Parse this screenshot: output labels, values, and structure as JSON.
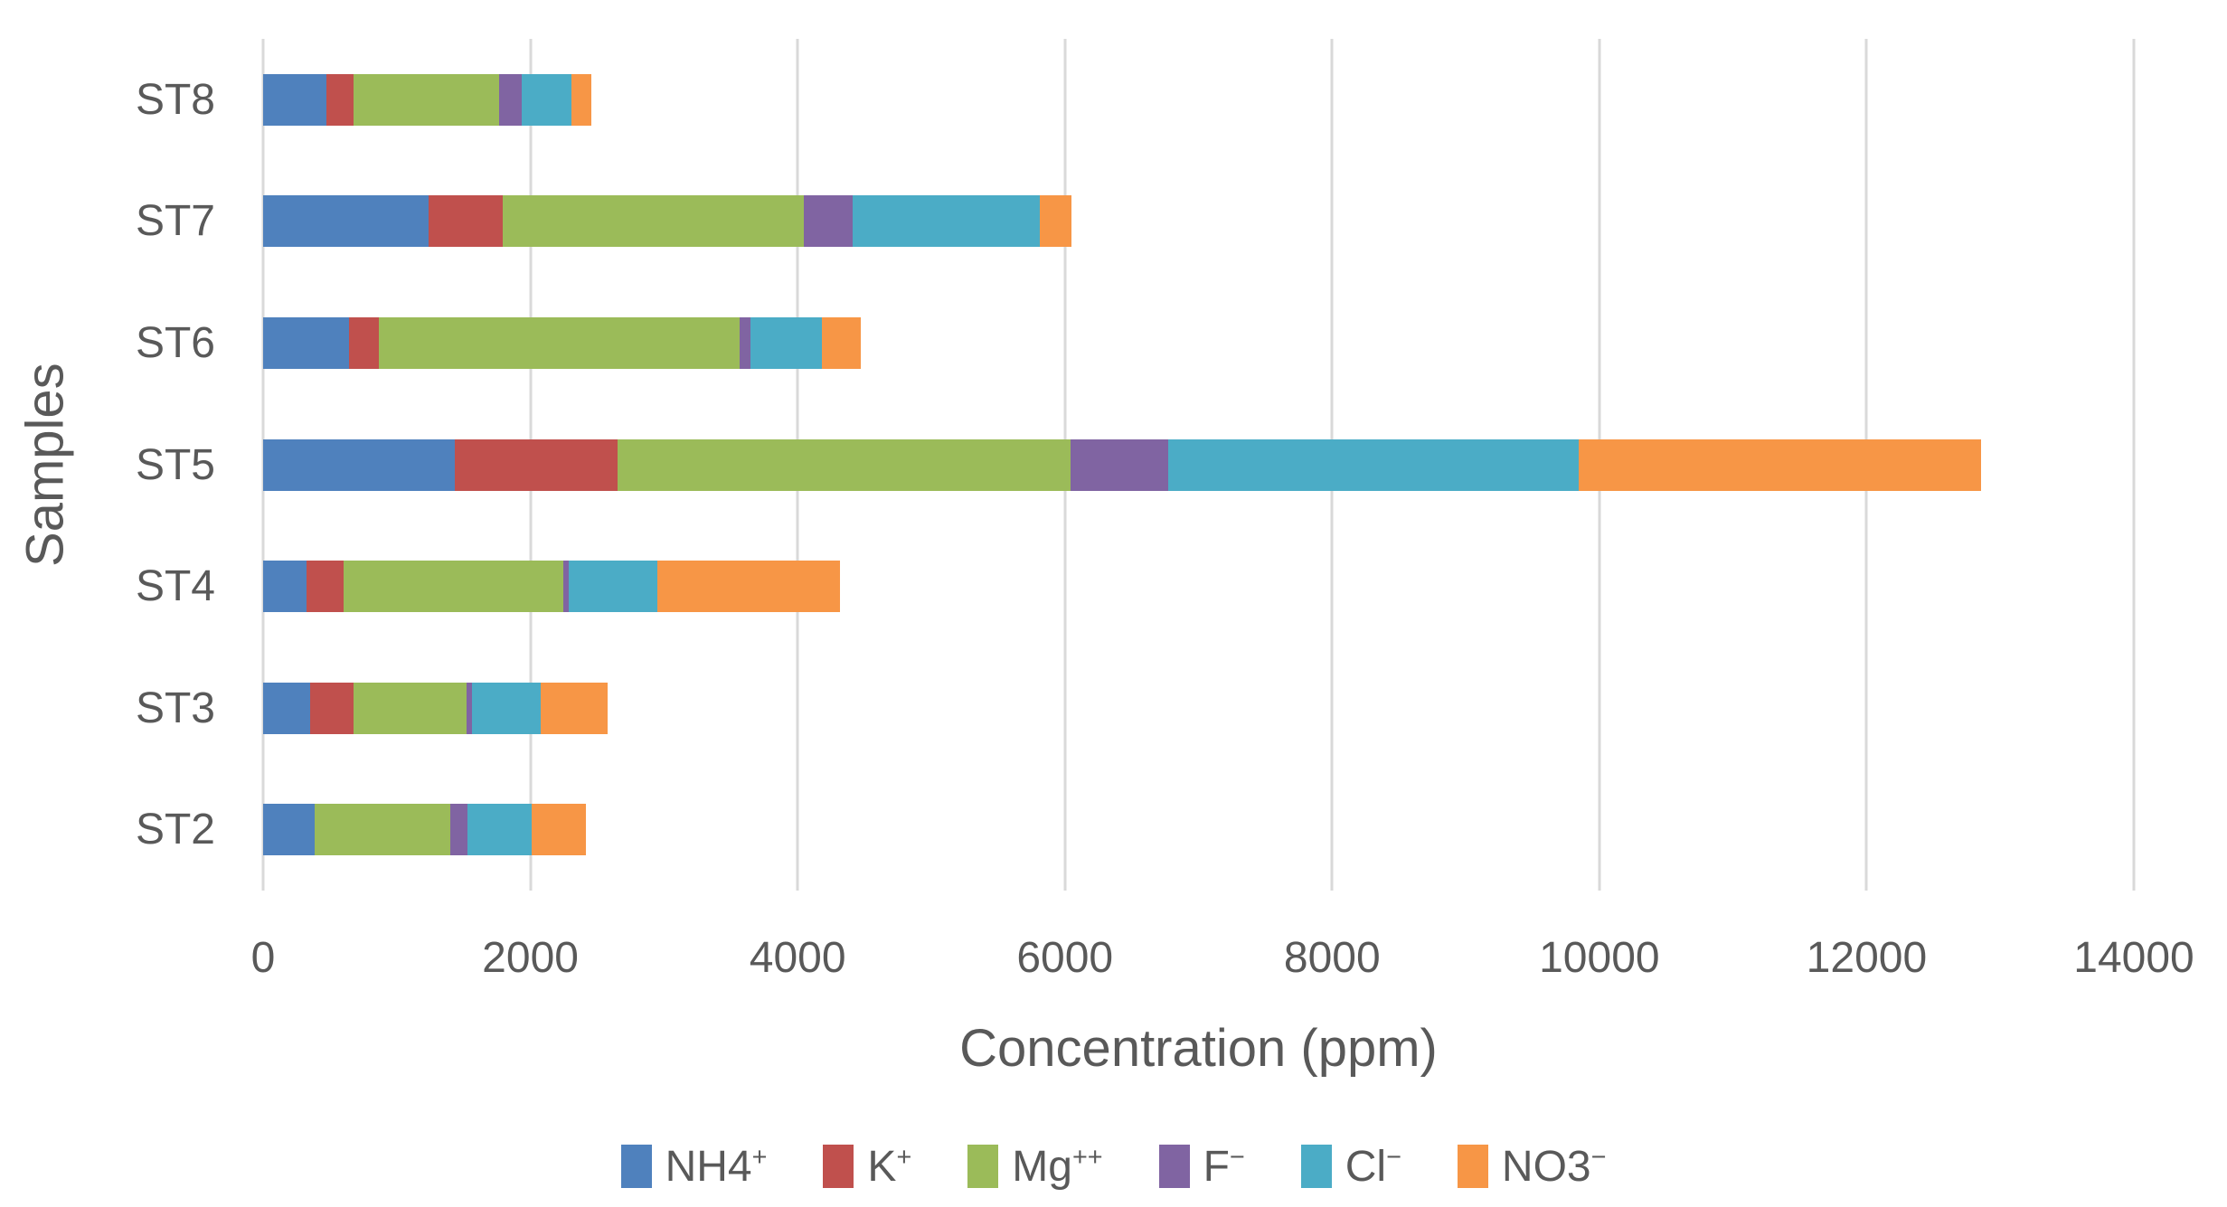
{
  "colors": {
    "background": "#FFFFFF",
    "grid": "#D9D9D9",
    "text": "#595959"
  },
  "chart_data": {
    "type": "bar",
    "orientation": "horizontal",
    "stacked": true,
    "title": "",
    "xlabel": "Concentration (ppm)",
    "ylabel": "Samples",
    "xlim": [
      0,
      14000
    ],
    "xticks": [
      0,
      2000,
      4000,
      6000,
      8000,
      10000,
      12000,
      14000
    ],
    "grid": true,
    "legend_position": "bottom",
    "categories_bottom_to_top": [
      "ST2",
      "ST3",
      "ST4",
      "ST5",
      "ST6",
      "ST7",
      "ST8"
    ],
    "series": [
      {
        "name": "NH4+",
        "label_base": "NH4",
        "label_sup": "+",
        "color": "#4F81BD",
        "values": {
          "ST2": 385,
          "ST3": 350,
          "ST4": 325,
          "ST5": 1435,
          "ST6": 640,
          "ST7": 1240,
          "ST8": 475
        }
      },
      {
        "name": "K+",
        "label_base": "K",
        "label_sup": "+",
        "color": "#C0504D",
        "values": {
          "ST2": 0,
          "ST3": 325,
          "ST4": 280,
          "ST5": 1220,
          "ST6": 225,
          "ST7": 555,
          "ST8": 200
        }
      },
      {
        "name": "Mg++",
        "label_base": "Mg",
        "label_sup": "++",
        "color": "#9BBB59",
        "values": {
          "ST2": 1015,
          "ST3": 850,
          "ST4": 1645,
          "ST5": 3390,
          "ST6": 2700,
          "ST7": 2250,
          "ST8": 1090
        }
      },
      {
        "name": "F-",
        "label_base": "F",
        "label_sup": "−",
        "color": "#8064A2",
        "values": {
          "ST2": 130,
          "ST3": 35,
          "ST4": 35,
          "ST5": 730,
          "ST6": 80,
          "ST7": 370,
          "ST8": 170
        }
      },
      {
        "name": "Cl-",
        "label_base": "Cl",
        "label_sup": "−",
        "color": "#4BACC6",
        "values": {
          "ST2": 480,
          "ST3": 520,
          "ST4": 665,
          "ST5": 3070,
          "ST6": 535,
          "ST7": 1395,
          "ST8": 375
        }
      },
      {
        "name": "NO3-",
        "label_base": "NO3",
        "label_sup": "−",
        "color": "#F79646",
        "values": {
          "ST2": 405,
          "ST3": 500,
          "ST4": 1365,
          "ST5": 3015,
          "ST6": 290,
          "ST7": 240,
          "ST8": 145
        }
      }
    ],
    "totals": {
      "ST2": 2415,
      "ST3": 2580,
      "ST4": 4315,
      "ST5": 12860,
      "ST6": 4470,
      "ST7": 6050,
      "ST8": 2455
    }
  }
}
